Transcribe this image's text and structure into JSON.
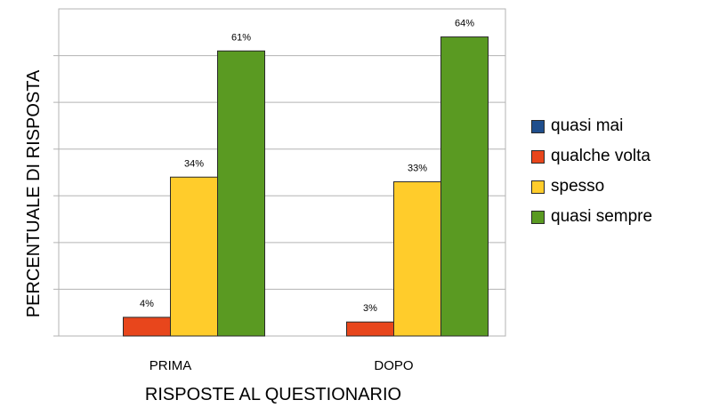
{
  "chart_data": {
    "type": "bar",
    "xlabel": "RISPOSTE AL QUESTIONARIO",
    "ylabel": "PERCENTUALE DI RISPOSTA",
    "categories": [
      "PRIMA",
      "DOPO"
    ],
    "ylim": [
      0,
      70
    ],
    "grid": true,
    "legend_position": "right",
    "series": [
      {
        "name": "quasi mai",
        "color": "#1f4e8c",
        "values": [
          0,
          0
        ],
        "labels": [
          "",
          ""
        ]
      },
      {
        "name": "qualche volta",
        "color": "#e8461c",
        "values": [
          4,
          3
        ],
        "labels": [
          "4%",
          "3%"
        ]
      },
      {
        "name": "spesso",
        "color": "#ffcc2b",
        "values": [
          34,
          33
        ],
        "labels": [
          "34%",
          "33%"
        ]
      },
      {
        "name": "quasi sempre",
        "color": "#5a9a22",
        "values": [
          61,
          64
        ],
        "labels": [
          "61%",
          "64%"
        ]
      }
    ]
  }
}
